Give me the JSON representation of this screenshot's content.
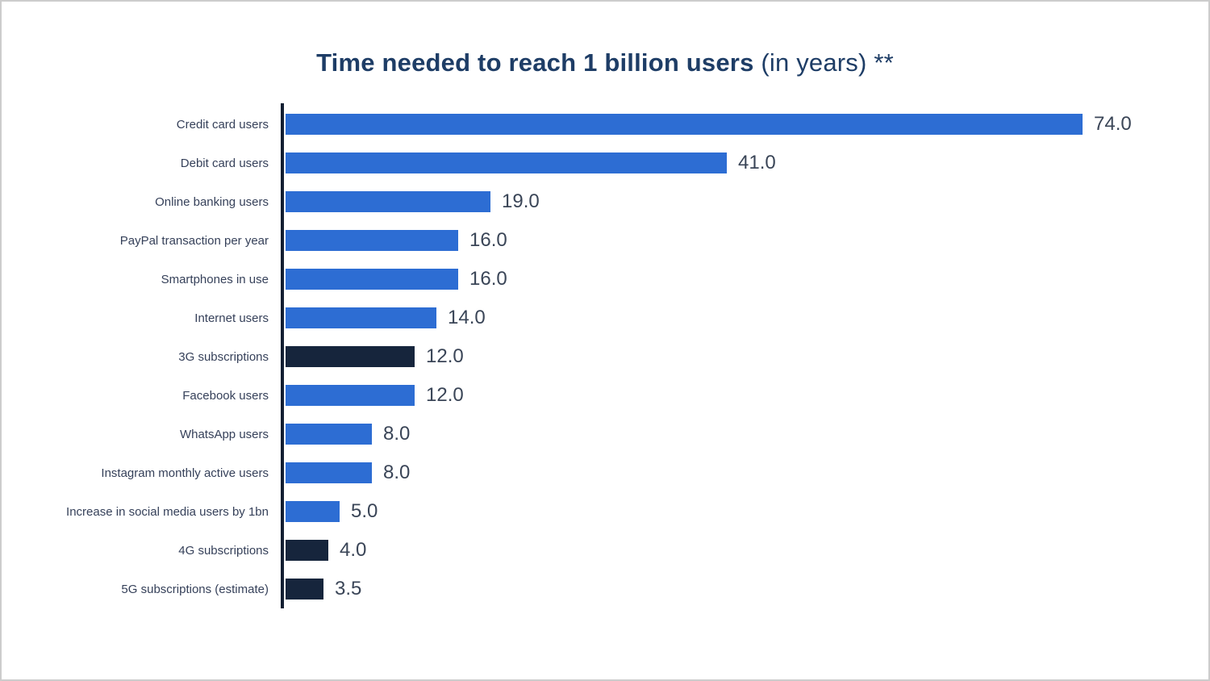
{
  "title": {
    "main": "Time needed to reach 1 billion users",
    "suffix": " (in years) **"
  },
  "colors": {
    "bar_blue": "#2d6dd3",
    "bar_dark": "#16253c",
    "axis": "#131f33",
    "title_text": "#1e3d66",
    "category_text": "#36415a",
    "value_text": "#3a4557"
  },
  "chart_data": {
    "type": "bar",
    "orientation": "horizontal",
    "title": "Time needed to reach 1 billion users (in years) **",
    "xlabel": "",
    "ylabel": "",
    "unit": "years",
    "xlim": [
      0,
      78
    ],
    "grid": false,
    "legend": false,
    "categories": [
      "Credit card users",
      "Debit card users",
      "Online banking users",
      "PayPal transaction per year",
      "Smartphones in use",
      "Internet users",
      "3G subscriptions",
      "Facebook users",
      "WhatsApp users",
      "Instagram monthly active users",
      "Increase in social media users by 1bn",
      "4G subscriptions",
      "5G subscriptions (estimate)"
    ],
    "values": [
      74.0,
      41.0,
      19.0,
      16.0,
      16.0,
      14.0,
      12.0,
      12.0,
      8.0,
      8.0,
      5.0,
      4.0,
      3.5
    ],
    "value_labels": [
      "74.0",
      "41.0",
      "19.0",
      "16.0",
      "16.0",
      "14.0",
      "12.0",
      "12.0",
      "8.0",
      "8.0",
      "5.0",
      "4.0",
      "3.5"
    ],
    "bar_colors": [
      "blue",
      "blue",
      "blue",
      "blue",
      "blue",
      "blue",
      "dark",
      "blue",
      "blue",
      "blue",
      "blue",
      "dark",
      "dark"
    ]
  }
}
